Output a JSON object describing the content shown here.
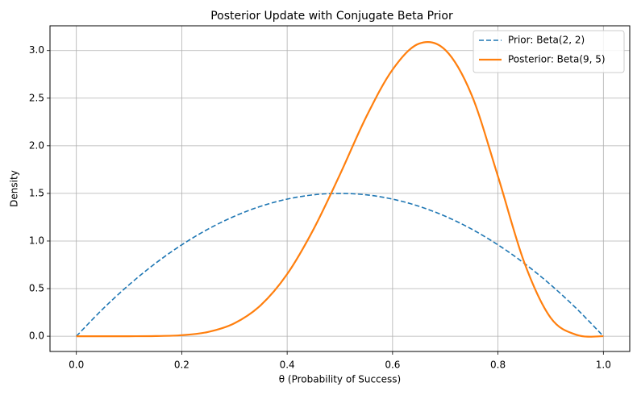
{
  "chart_data": {
    "type": "line",
    "title": "Posterior Update with Conjugate Beta Prior",
    "xlabel": "θ (Probability of Success)",
    "ylabel": "Density",
    "xlim": [
      -0.05,
      1.05
    ],
    "ylim": [
      -0.16,
      3.26
    ],
    "xticks": [
      0.0,
      0.2,
      0.4,
      0.6,
      0.8,
      1.0
    ],
    "xtick_labels": [
      "0.0",
      "0.2",
      "0.4",
      "0.6",
      "0.8",
      "1.0"
    ],
    "yticks": [
      0.0,
      0.5,
      1.0,
      1.5,
      2.0,
      2.5,
      3.0
    ],
    "ytick_labels": [
      "0.0",
      "0.5",
      "1.0",
      "1.5",
      "2.0",
      "2.5",
      "3.0"
    ],
    "grid": true,
    "legend_position": "top-right",
    "x": [
      0.0,
      0.05,
      0.1,
      0.15,
      0.2,
      0.25,
      0.3,
      0.35,
      0.4,
      0.45,
      0.5,
      0.55,
      0.6,
      0.65,
      0.7,
      0.75,
      0.8,
      0.85,
      0.9,
      0.95,
      1.0
    ],
    "series": [
      {
        "name": "Prior: Beta(2, 2)",
        "style": "dashed",
        "color": "#1f77b4",
        "values": [
          0.0,
          0.285,
          0.54,
          0.765,
          0.96,
          1.125,
          1.26,
          1.365,
          1.44,
          1.485,
          1.5,
          1.485,
          1.44,
          1.365,
          1.26,
          1.125,
          0.96,
          0.765,
          0.54,
          0.285,
          0.0
        ]
      },
      {
        "name": "Posterior: Beta(9, 5)",
        "style": "solid",
        "color": "#ff7f0e",
        "values": [
          0.0,
          0.0,
          0.0001,
          0.0016,
          0.0107,
          0.0449,
          0.1362,
          0.3263,
          0.6523,
          1.1231,
          1.6968,
          2.3036,
          2.7998,
          3.072,
          3.0065,
          2.5337,
          1.6779,
          0.7733,
          0.1937,
          0.0131,
          0.0
        ]
      }
    ]
  }
}
